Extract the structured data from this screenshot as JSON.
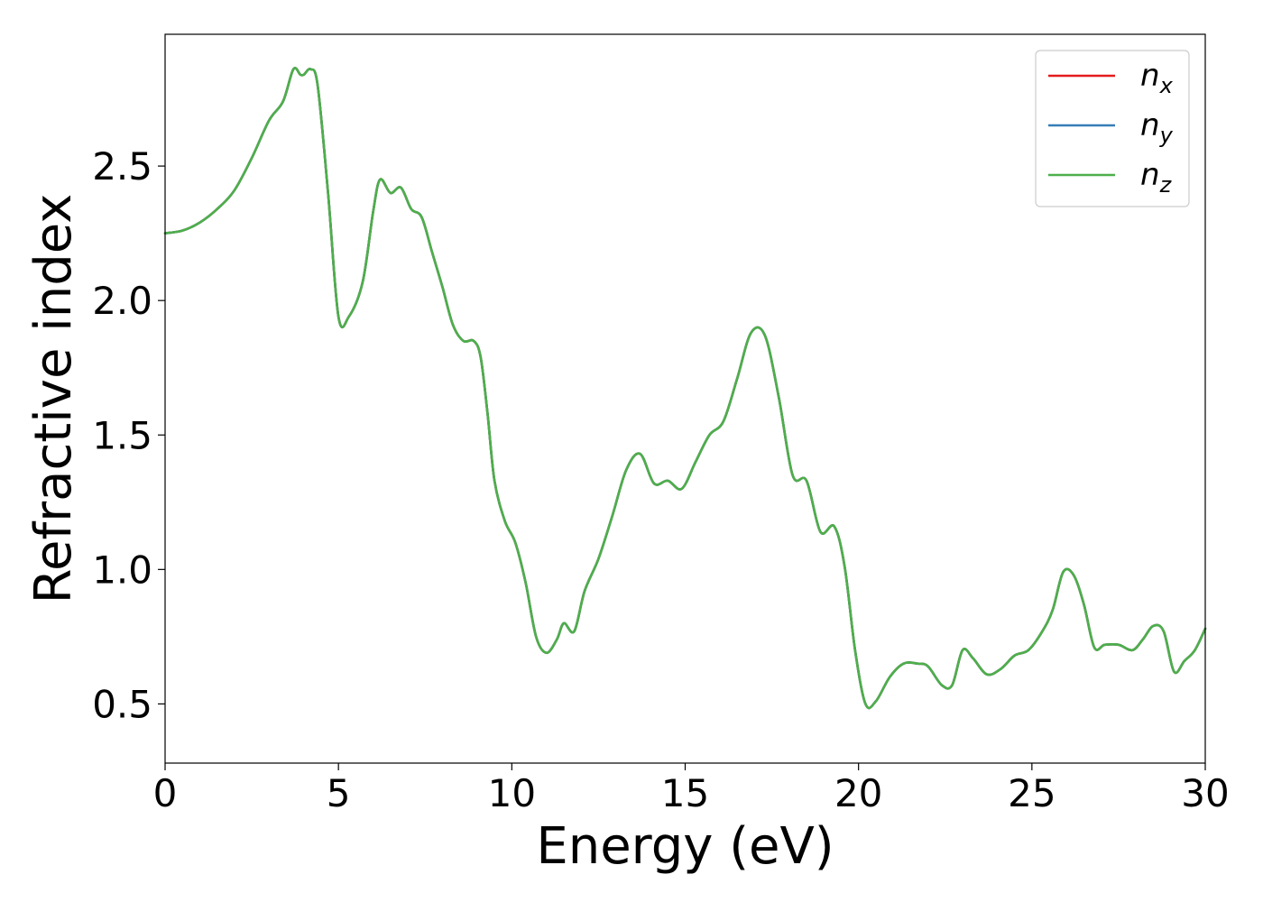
{
  "chart_data": {
    "type": "line",
    "xlabel": "Energy (eV)",
    "ylabel": "Refractive index",
    "xlim": [
      0,
      30
    ],
    "ylim": [
      0.28,
      2.99
    ],
    "xticks": [
      0,
      5,
      10,
      15,
      20,
      25,
      30
    ],
    "xtick_labels": [
      "0",
      "5",
      "10",
      "15",
      "20",
      "25",
      "30"
    ],
    "yticks": [
      0.5,
      1.0,
      1.5,
      2.0,
      2.5
    ],
    "ytick_labels": [
      "0.5",
      "1.0",
      "1.5",
      "2.0",
      "2.5"
    ],
    "grid": false,
    "legend_position": "top-right",
    "series": [
      {
        "name": "n_x",
        "label_base": "n",
        "label_sub": "x",
        "color": "#e41a1c",
        "x": [
          0,
          0.5,
          1,
          1.5,
          2,
          2.5,
          3,
          3.4,
          3.7,
          3.9,
          4.0,
          4.2,
          4.4,
          4.7,
          5.0,
          5.3,
          5.7,
          6.0,
          6.2,
          6.5,
          6.8,
          7.1,
          7.4,
          7.7,
          8.0,
          8.3,
          8.6,
          8.9,
          9.1,
          9.3,
          9.5,
          9.8,
          10.1,
          10.4,
          10.7,
          11.0,
          11.3,
          11.5,
          11.8,
          12.1,
          12.5,
          12.9,
          13.3,
          13.7,
          14.1,
          14.5,
          14.9,
          15.3,
          15.7,
          16.1,
          16.5,
          16.9,
          17.3,
          17.7,
          18.1,
          18.5,
          18.9,
          19.3,
          19.6,
          19.9,
          20.2,
          20.5,
          20.9,
          21.3,
          21.7,
          22.0,
          22.4,
          22.7,
          23.0,
          23.3,
          23.7,
          24.1,
          24.5,
          24.9,
          25.3,
          25.6,
          25.9,
          26.2,
          26.5,
          26.8,
          27.1,
          27.5,
          27.9,
          28.2,
          28.5,
          28.8,
          29.1,
          29.4,
          29.7,
          30.0
        ],
        "y": [
          2.25,
          2.26,
          2.29,
          2.34,
          2.41,
          2.53,
          2.67,
          2.74,
          2.86,
          2.84,
          2.84,
          2.86,
          2.8,
          2.4,
          1.94,
          1.94,
          2.07,
          2.33,
          2.45,
          2.4,
          2.42,
          2.34,
          2.31,
          2.18,
          2.05,
          1.91,
          1.85,
          1.85,
          1.79,
          1.58,
          1.33,
          1.18,
          1.1,
          0.95,
          0.75,
          0.69,
          0.74,
          0.8,
          0.77,
          0.92,
          1.04,
          1.2,
          1.37,
          1.43,
          1.32,
          1.33,
          1.3,
          1.4,
          1.5,
          1.55,
          1.71,
          1.88,
          1.87,
          1.64,
          1.35,
          1.33,
          1.14,
          1.16,
          1.01,
          0.7,
          0.5,
          0.51,
          0.6,
          0.65,
          0.65,
          0.64,
          0.57,
          0.57,
          0.7,
          0.67,
          0.61,
          0.63,
          0.68,
          0.7,
          0.77,
          0.85,
          0.99,
          0.98,
          0.87,
          0.71,
          0.72,
          0.72,
          0.7,
          0.74,
          0.79,
          0.77,
          0.62,
          0.66,
          0.7,
          0.78
        ]
      },
      {
        "name": "n_y",
        "label_base": "n",
        "label_sub": "y",
        "color": "#377eb8",
        "x": [
          0,
          0.5,
          1,
          1.5,
          2,
          2.5,
          3,
          3.4,
          3.7,
          3.9,
          4.0,
          4.2,
          4.4,
          4.7,
          5.0,
          5.3,
          5.7,
          6.0,
          6.2,
          6.5,
          6.8,
          7.1,
          7.4,
          7.7,
          8.0,
          8.3,
          8.6,
          8.9,
          9.1,
          9.3,
          9.5,
          9.8,
          10.1,
          10.4,
          10.7,
          11.0,
          11.3,
          11.5,
          11.8,
          12.1,
          12.5,
          12.9,
          13.3,
          13.7,
          14.1,
          14.5,
          14.9,
          15.3,
          15.7,
          16.1,
          16.5,
          16.9,
          17.3,
          17.7,
          18.1,
          18.5,
          18.9,
          19.3,
          19.6,
          19.9,
          20.2,
          20.5,
          20.9,
          21.3,
          21.7,
          22.0,
          22.4,
          22.7,
          23.0,
          23.3,
          23.7,
          24.1,
          24.5,
          24.9,
          25.3,
          25.6,
          25.9,
          26.2,
          26.5,
          26.8,
          27.1,
          27.5,
          27.9,
          28.2,
          28.5,
          28.8,
          29.1,
          29.4,
          29.7,
          30.0
        ],
        "y": [
          2.25,
          2.26,
          2.29,
          2.34,
          2.41,
          2.53,
          2.67,
          2.74,
          2.86,
          2.84,
          2.84,
          2.86,
          2.8,
          2.4,
          1.94,
          1.94,
          2.07,
          2.33,
          2.45,
          2.4,
          2.42,
          2.34,
          2.31,
          2.18,
          2.05,
          1.91,
          1.85,
          1.85,
          1.79,
          1.58,
          1.33,
          1.18,
          1.1,
          0.95,
          0.75,
          0.69,
          0.74,
          0.8,
          0.77,
          0.92,
          1.04,
          1.2,
          1.37,
          1.43,
          1.32,
          1.33,
          1.3,
          1.4,
          1.5,
          1.55,
          1.71,
          1.88,
          1.87,
          1.64,
          1.35,
          1.33,
          1.14,
          1.16,
          1.01,
          0.7,
          0.5,
          0.51,
          0.6,
          0.65,
          0.65,
          0.64,
          0.57,
          0.57,
          0.7,
          0.67,
          0.61,
          0.63,
          0.68,
          0.7,
          0.77,
          0.85,
          0.99,
          0.98,
          0.87,
          0.71,
          0.72,
          0.72,
          0.7,
          0.74,
          0.79,
          0.77,
          0.62,
          0.66,
          0.7,
          0.78
        ]
      },
      {
        "name": "n_z",
        "label_base": "n",
        "label_sub": "z",
        "color": "#4daf4a",
        "x": [
          0,
          0.5,
          1,
          1.5,
          2,
          2.5,
          3,
          3.4,
          3.7,
          3.9,
          4.0,
          4.2,
          4.4,
          4.7,
          5.0,
          5.3,
          5.7,
          6.0,
          6.2,
          6.5,
          6.8,
          7.1,
          7.4,
          7.7,
          8.0,
          8.3,
          8.6,
          8.9,
          9.1,
          9.3,
          9.5,
          9.8,
          10.1,
          10.4,
          10.7,
          11.0,
          11.3,
          11.5,
          11.8,
          12.1,
          12.5,
          12.9,
          13.3,
          13.7,
          14.1,
          14.5,
          14.9,
          15.3,
          15.7,
          16.1,
          16.5,
          16.9,
          17.3,
          17.7,
          18.1,
          18.5,
          18.9,
          19.3,
          19.6,
          19.9,
          20.2,
          20.5,
          20.9,
          21.3,
          21.7,
          22.0,
          22.4,
          22.7,
          23.0,
          23.3,
          23.7,
          24.1,
          24.5,
          24.9,
          25.3,
          25.6,
          25.9,
          26.2,
          26.5,
          26.8,
          27.1,
          27.5,
          27.9,
          28.2,
          28.5,
          28.8,
          29.1,
          29.4,
          29.7,
          30.0
        ],
        "y": [
          2.25,
          2.26,
          2.29,
          2.34,
          2.41,
          2.53,
          2.67,
          2.74,
          2.86,
          2.84,
          2.84,
          2.86,
          2.8,
          2.4,
          1.94,
          1.94,
          2.07,
          2.33,
          2.45,
          2.4,
          2.42,
          2.34,
          2.31,
          2.18,
          2.05,
          1.91,
          1.85,
          1.85,
          1.79,
          1.58,
          1.33,
          1.18,
          1.1,
          0.95,
          0.75,
          0.69,
          0.74,
          0.8,
          0.77,
          0.92,
          1.04,
          1.2,
          1.37,
          1.43,
          1.32,
          1.33,
          1.3,
          1.4,
          1.5,
          1.55,
          1.71,
          1.88,
          1.87,
          1.64,
          1.35,
          1.33,
          1.14,
          1.16,
          1.01,
          0.7,
          0.5,
          0.51,
          0.6,
          0.65,
          0.65,
          0.64,
          0.57,
          0.57,
          0.7,
          0.67,
          0.61,
          0.63,
          0.68,
          0.7,
          0.77,
          0.85,
          0.99,
          0.98,
          0.87,
          0.71,
          0.72,
          0.72,
          0.7,
          0.74,
          0.79,
          0.77,
          0.62,
          0.66,
          0.7,
          0.78
        ]
      }
    ]
  }
}
